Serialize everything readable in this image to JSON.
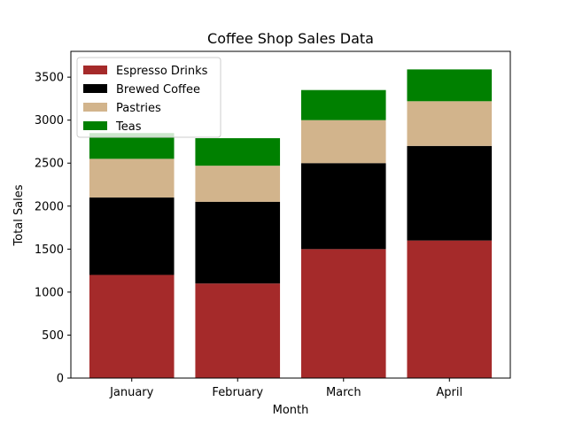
{
  "chart_data": {
    "type": "bar",
    "stacked": true,
    "title": "Coffee Shop Sales Data",
    "xlabel": "Month",
    "ylabel": "Total Sales",
    "categories": [
      "January",
      "February",
      "March",
      "April"
    ],
    "series": [
      {
        "name": "Espresso Drinks",
        "color": "#a52a2a",
        "values": [
          1200,
          1100,
          1500,
          1600
        ]
      },
      {
        "name": "Brewed Coffee",
        "color": "#000000",
        "values": [
          900,
          950,
          1000,
          1100
        ]
      },
      {
        "name": "Pastries",
        "color": "#d2b48c",
        "values": [
          450,
          420,
          500,
          520
        ]
      },
      {
        "name": "Teas",
        "color": "#008000",
        "values": [
          300,
          320,
          350,
          370
        ]
      }
    ],
    "ylim": [
      0,
      3800
    ],
    "yticks": [
      0,
      500,
      1000,
      1500,
      2000,
      2500,
      3000,
      3500
    ],
    "legend_position": "top-left",
    "grid": false
  }
}
